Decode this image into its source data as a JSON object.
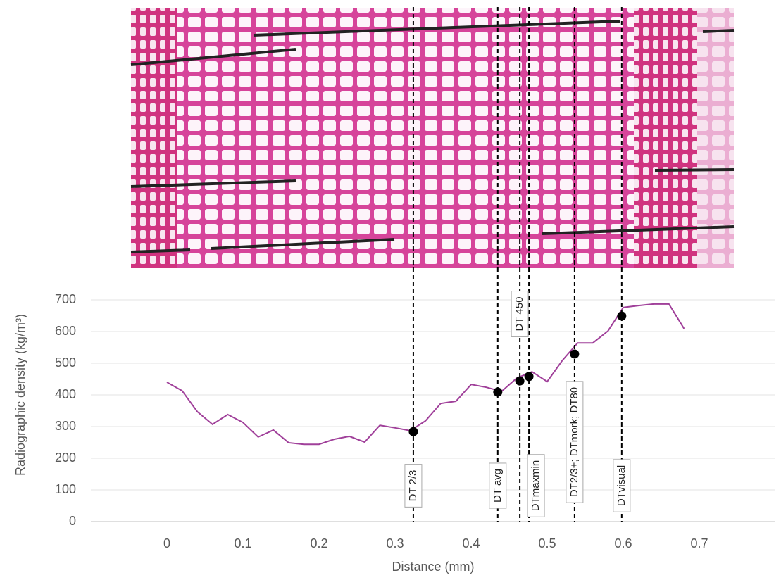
{
  "chart_data": {
    "type": "line",
    "xlabel": "Distance (mm)",
    "ylabel": "Radiographic density (kg/m³)",
    "x": [
      0,
      0.02,
      0.04,
      0.06,
      0.08,
      0.1,
      0.12,
      0.14,
      0.16,
      0.18,
      0.2,
      0.22,
      0.24,
      0.26,
      0.28,
      0.3,
      0.32,
      0.34,
      0.36,
      0.38,
      0.4,
      0.42,
      0.44,
      0.46,
      0.48,
      0.5,
      0.52,
      0.54,
      0.56,
      0.58,
      0.6,
      0.62,
      0.64,
      0.66,
      0.68
    ],
    "series": [
      {
        "color": "#a0409a",
        "values": [
          440,
          413,
          347,
          307,
          338,
          313,
          267,
          289,
          249,
          244,
          244,
          260,
          269,
          251,
          304,
          296,
          287,
          318,
          373,
          380,
          433,
          424,
          411,
          453,
          473,
          442,
          509,
          564,
          564,
          602,
          676,
          682,
          687,
          687,
          609
        ]
      }
    ],
    "markers": [
      {
        "label": "DT 2/3",
        "x": 0.324,
        "y": 284
      },
      {
        "label": "DT avg",
        "x": 0.435,
        "y": 409
      },
      {
        "label": "DT 450",
        "x": 0.464,
        "y": 444
      },
      {
        "label": "DTmaxmin",
        "x": 0.476,
        "y": 458
      },
      {
        "label": "DT2/3+; DTmork; DT80",
        "x": 0.536,
        "y": 529
      },
      {
        "label": "DTvisual",
        "x": 0.598,
        "y": 649
      }
    ],
    "marker_color": "#000000",
    "xlim": [
      -0.1,
      0.8
    ],
    "xticks": [
      0,
      0.1,
      0.2,
      0.3,
      0.4,
      0.5,
      0.6,
      0.7
    ],
    "ylim": [
      0,
      800
    ],
    "yticks": [
      0,
      100,
      200,
      300,
      400,
      500,
      600,
      700
    ],
    "grid": true
  }
}
